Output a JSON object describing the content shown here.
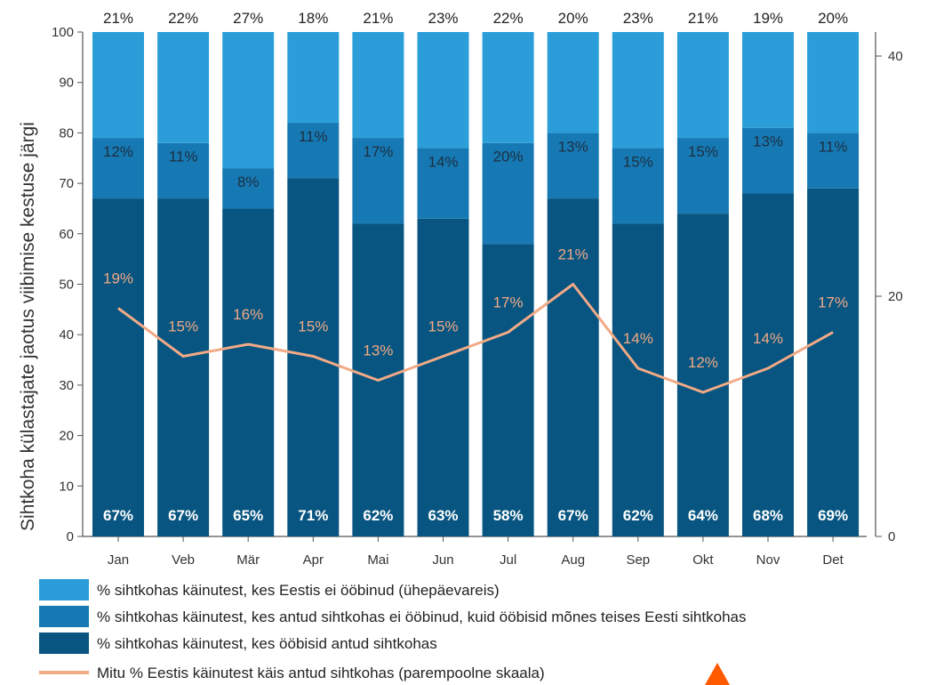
{
  "chart_data": {
    "type": "bar",
    "stacked": true,
    "categories": [
      "Jan",
      "Veb",
      "Mär",
      "Apr",
      "Mai",
      "Jun",
      "Jul",
      "Aug",
      "Sep",
      "Okt",
      "Nov",
      "Det"
    ],
    "series": [
      {
        "name": "% sihtkohas käinutest, kes öõbisid antud sihtkohas",
        "values": [
          67,
          67,
          65,
          71,
          62,
          63,
          58,
          67,
          62,
          64,
          68,
          69
        ],
        "labels": [
          "67%",
          "67%",
          "65%",
          "71%",
          "62%",
          "63%",
          "58%",
          "67%",
          "62%",
          "64%",
          "68%",
          "69%"
        ],
        "color": "#075580"
      },
      {
        "name": "% sihtkohas käinutest, kes antud sihtkohas ei ööbinud, kuid ööbisid mõnes teises Eesti sihtkohas",
        "values": [
          12,
          11,
          8,
          11,
          17,
          14,
          20,
          13,
          15,
          15,
          13,
          11
        ],
        "labels": [
          "12%",
          "11%",
          "8%",
          "11%",
          "17%",
          "14%",
          "20%",
          "13%",
          "15%",
          "15%",
          "13%",
          "11%"
        ],
        "color": "#1679b4"
      },
      {
        "name": "% sihtkohas käinutest, kes Eestis ei ööbinud (ühepäevareis)",
        "values": [
          21,
          22,
          27,
          18,
          21,
          23,
          22,
          20,
          23,
          21,
          19,
          20
        ],
        "labels": [
          "21%",
          "22%",
          "27%",
          "18%",
          "21%",
          "23%",
          "22%",
          "20%",
          "23%",
          "21%",
          "19%",
          "20%"
        ],
        "color": "#2b9ed9"
      }
    ],
    "line_series": {
      "name": "Mitu % Eestis käinutest käis antud sihtkohas (parempoolne skaala)",
      "values": [
        19,
        15,
        16,
        15,
        13,
        15,
        17,
        21,
        14,
        12,
        14,
        17
      ],
      "labels": [
        "19%",
        "15%",
        "16%",
        "15%",
        "13%",
        "15%",
        "17%",
        "21%",
        "14%",
        "12%",
        "14%",
        "17%"
      ],
      "color": "#f2aa86",
      "axis": "right"
    },
    "ylabel": "Sihtkoha külastajate jaotus viibimise kestuse järgi",
    "ylim": [
      0,
      100
    ],
    "yticks": [
      "0",
      "10",
      "20",
      "30",
      "40",
      "50",
      "60",
      "70",
      "80",
      "90",
      "100"
    ],
    "y2lim": [
      0,
      40
    ],
    "y2ticks": [
      "0",
      "20",
      "40"
    ],
    "legend": {
      "position": "bottom",
      "items": [
        {
          "label": "% sihtkohas käinutest, kes Eestis ei ööbinud (ühepäevareis)",
          "color": "#2b9ed9",
          "kind": "box"
        },
        {
          "label": "% sihtkohas käinutest, kes antud sihtkohas ei ööbinud, kuid ööbisid mõnes teises Eesti sihtkohas",
          "color": "#1679b4",
          "kind": "box"
        },
        {
          "label": "% sihtkohas käinutest, kes ööbisid antud sihtkohas",
          "color": "#075580",
          "kind": "box"
        },
        {
          "label": "Mitu % Eestis käinutest käis antud sihtkohas (parempoolne skaala)",
          "color": "#f2aa86",
          "kind": "line"
        }
      ]
    },
    "marker_color": "#ff5a00"
  }
}
